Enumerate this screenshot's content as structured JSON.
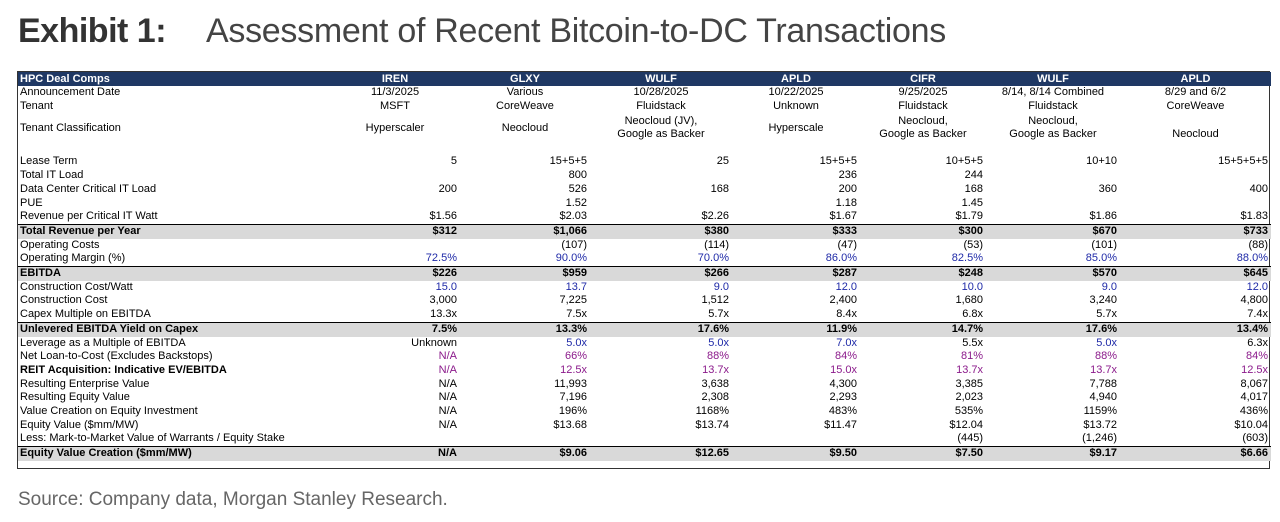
{
  "header": {
    "exhibit_label": "Exhibit 1:",
    "title": "Assessment of Recent Bitcoin-to-DC Transactions"
  },
  "table": {
    "header": [
      "HPC Deal Comps",
      "IREN",
      "GLXY",
      "WULF",
      "APLD",
      "CIFR",
      "WULF",
      "APLD"
    ],
    "rows": {
      "announcement_date": [
        "Announcement Date",
        "11/3/2025",
        "Various",
        "10/28/2025",
        "10/22/2025",
        "9/25/2025",
        "8/14, 8/14 Combined",
        "8/29 and 6/2"
      ],
      "tenant": [
        "Tenant",
        "MSFT",
        "CoreWeave",
        "Fluidstack",
        "Unknown",
        "Fluidstack",
        "Fluidstack",
        "CoreWeave"
      ],
      "tenant_classification": [
        "Tenant Classification",
        "Hyperscaler",
        "Neocloud",
        "Neocloud (JV),\nGoogle as Backer",
        "Hyperscale",
        "Neocloud,\nGoogle as Backer",
        "Neocloud,\nGoogle as Backer",
        "Neocloud"
      ],
      "lease_term": [
        "Lease Term",
        "5",
        "15+5+5",
        "25",
        "15+5+5",
        "10+5+5",
        "10+10",
        "15+5+5+5"
      ],
      "total_it_load": [
        "Total IT Load",
        "",
        "800",
        "",
        "236",
        "244",
        "",
        ""
      ],
      "dc_critical_it_load": [
        "Data Center Critical IT Load",
        "200",
        "526",
        "168",
        "200",
        "168",
        "360",
        "400"
      ],
      "pue": [
        "PUE",
        "",
        "1.52",
        "",
        "1.18",
        "1.45",
        "",
        ""
      ],
      "revenue_per_watt": [
        "Revenue per Critical IT Watt",
        "$1.56",
        "$2.03",
        "$2.26",
        "$1.67",
        "$1.79",
        "$1.86",
        "$1.83"
      ],
      "total_revenue": [
        "Total Revenue per Year",
        "$312",
        "$1,066",
        "$380",
        "$333",
        "$300",
        "$670",
        "$733"
      ],
      "operating_costs": [
        "Operating Costs",
        "",
        "(107)",
        "(114)",
        "(47)",
        "(53)",
        "(101)",
        "(88)"
      ],
      "operating_margin": [
        "Operating Margin (%)",
        "72.5%",
        "90.0%",
        "70.0%",
        "86.0%",
        "82.5%",
        "85.0%",
        "88.0%"
      ],
      "ebitda": [
        "EBITDA",
        "$226",
        "$959",
        "$266",
        "$287",
        "$248",
        "$570",
        "$645"
      ],
      "construction_cost_watt": [
        "Construction Cost/Watt",
        "15.0",
        "13.7",
        "9.0",
        "12.0",
        "10.0",
        "9.0",
        "12.0"
      ],
      "construction_cost": [
        "Construction Cost",
        "3,000",
        "7,225",
        "1,512",
        "2,400",
        "1,680",
        "3,240",
        "4,800"
      ],
      "capex_multiple": [
        "Capex Multiple on EBITDA",
        "13.3x",
        "7.5x",
        "5.7x",
        "8.4x",
        "6.8x",
        "5.7x",
        "7.4x"
      ],
      "unlevered_yield": [
        "Unlevered EBITDA Yield on Capex",
        "7.5%",
        "13.3%",
        "17.6%",
        "11.9%",
        "14.7%",
        "17.6%",
        "13.4%"
      ],
      "leverage": [
        "Leverage as a Multiple of EBITDA",
        "Unknown",
        "5.0x",
        "5.0x",
        "7.0x",
        "5.5x",
        "5.0x",
        "6.3x"
      ],
      "net_ltc": [
        "Net Loan-to-Cost (Excludes Backstops)",
        "N/A",
        "66%",
        "88%",
        "84%",
        "81%",
        "88%",
        "84%"
      ],
      "reit_acquisition": [
        "REIT Acquisition: Indicative EV/EBITDA",
        "N/A",
        "12.5x",
        "13.7x",
        "15.0x",
        "13.7x",
        "13.7x",
        "12.5x"
      ],
      "resulting_ev": [
        "Resulting Enterprise Value",
        "N/A",
        "11,993",
        "3,638",
        "4,300",
        "3,385",
        "7,788",
        "8,067"
      ],
      "resulting_equity": [
        "Resulting Equity Value",
        "N/A",
        "7,196",
        "2,308",
        "2,293",
        "2,023",
        "4,940",
        "4,017"
      ],
      "value_creation": [
        "Value Creation on Equity Investment",
        "N/A",
        "196%",
        "1168%",
        "483%",
        "535%",
        "1159%",
        "436%"
      ],
      "equity_value_mw": [
        "Equity Value ($mm/MW)",
        "N/A",
        "$13.68",
        "$13.74",
        "$11.47",
        "$12.04",
        "$13.72",
        "$10.04"
      ],
      "less_mtm": [
        "Less: Mark-to-Market Value of Warrants / Equity Stake",
        "",
        "",
        "",
        "",
        "(445)",
        "(1,246)",
        "(603)"
      ],
      "equity_value_creation": [
        "Equity Value Creation ($mm/MW)",
        "N/A",
        "$9.06",
        "$12.65",
        "$9.50",
        "$7.50",
        "$9.17",
        "$6.66"
      ]
    }
  },
  "colors": {
    "header_bg": "#1f3864",
    "highlight_bg": "#d9d9d9",
    "blue_input": "#1f2aa8",
    "purple_input": "#8b1a8b"
  },
  "source": "Source: Company data, Morgan Stanley Research."
}
